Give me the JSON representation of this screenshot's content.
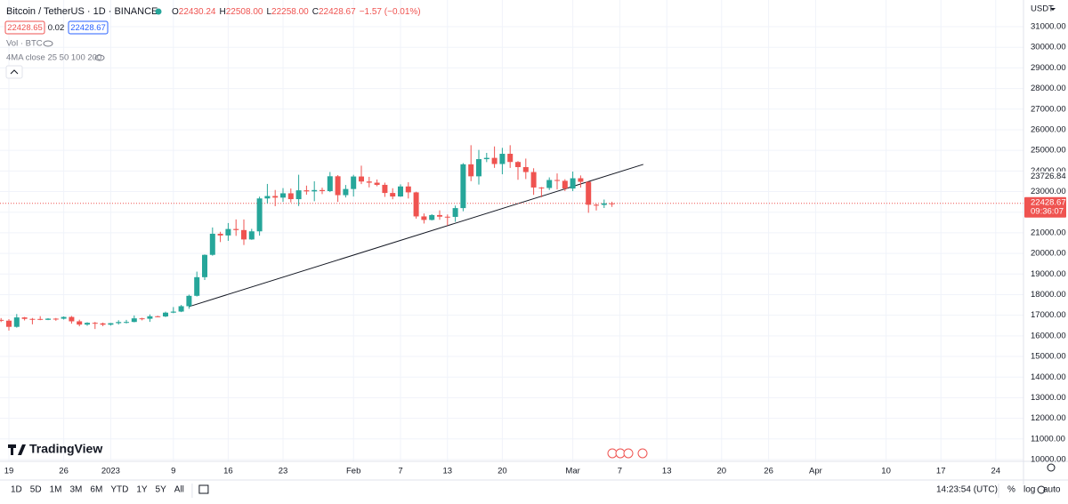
{
  "header": {
    "symbol": "Bitcoin / TetherUS · 1D · BINANCE",
    "ohlc": [
      {
        "label": "O",
        "value": "22430.24"
      },
      {
        "label": "H",
        "value": "22508.00"
      },
      {
        "label": "L",
        "value": "22258.00"
      },
      {
        "label": "C",
        "value": "22428.67"
      }
    ],
    "change": "−1.57 (−0.01%)",
    "bid": "22428.65",
    "spread": "0.02",
    "ask": "22428.67",
    "indicators": [
      "Vol · BTC",
      "4MA close 25 50 100 200"
    ],
    "currency": "USDT"
  },
  "logo": "TradingView",
  "toolbar": {
    "ranges": [
      "1D",
      "5D",
      "1M",
      "3M",
      "6M",
      "YTD",
      "1Y",
      "5Y",
      "All"
    ],
    "clock": "14:23:54 (UTC)",
    "scale_buttons": [
      "%",
      "log",
      "auto"
    ]
  },
  "chart_data": {
    "type": "candlestick",
    "categories": [
      null,
      "19",
      null,
      null,
      null,
      null,
      null,
      null,
      "26",
      null,
      null,
      null,
      null,
      null,
      "2023",
      null,
      null,
      null,
      null,
      null,
      null,
      null,
      "9",
      null,
      null,
      null,
      null,
      null,
      null,
      "16",
      null,
      null,
      null,
      null,
      null,
      null,
      "23",
      null,
      null,
      null,
      null,
      null,
      null,
      null,
      null,
      "Feb",
      null,
      null,
      null,
      null,
      null,
      "7",
      null,
      null,
      null,
      null,
      null,
      "13",
      null,
      null,
      null,
      null,
      null,
      null,
      "20",
      null,
      null,
      null,
      null,
      null,
      null,
      null,
      null,
      "Mar",
      null,
      null,
      null,
      null,
      null,
      "7",
      null,
      null,
      null,
      null,
      null,
      "13",
      null,
      null,
      null,
      null,
      null,
      null,
      "20",
      null,
      null,
      null,
      null,
      null,
      "26",
      null,
      null,
      null,
      null,
      null,
      "Apr",
      null,
      null,
      null,
      null,
      null,
      null,
      null,
      null,
      "10",
      null,
      null,
      null,
      null,
      null,
      null,
      "17",
      null,
      null,
      null,
      null,
      null,
      null,
      "24"
    ],
    "open": [
      16776,
      16738,
      16438,
      16895,
      16824,
      16821,
      16778,
      16836,
      16832,
      16918,
      16706,
      16547,
      16633,
      16607,
      16542,
      16617,
      16672,
      16675,
      16850,
      16831,
      16950,
      16943,
      17127,
      17179,
      17440,
      17943,
      18847,
      19930,
      20952,
      20872,
      21185,
      21133,
      20678,
      21071,
      22667,
      22784,
      22707,
      22917,
      22632,
      23061,
      23009,
      23074,
      23023,
      23743,
      22827,
      23125,
      23732,
      23489,
      23431,
      23327,
      22932,
      22763,
      23249,
      22962,
      21796,
      21625,
      21862,
      21782,
      21773,
      22199,
      24322,
      23740,
      24574,
      24635,
      24338,
      24834,
      24436,
      24188,
      23947,
      23198,
      23175,
      23561,
      23522,
      23147,
      23647,
      23476,
      22362,
      22354,
      22430.24,
      null,
      null,
      null,
      null,
      null,
      null,
      null,
      null,
      null,
      null,
      null,
      null,
      null,
      null,
      null,
      null,
      null,
      null,
      null,
      null,
      null,
      null,
      null,
      null,
      null,
      null,
      null,
      null,
      null,
      null,
      null,
      null,
      null,
      null,
      null,
      null,
      null,
      null,
      null,
      null,
      null,
      null,
      null,
      null,
      null,
      null,
      null,
      null,
      null
    ],
    "high": [
      16863,
      16815,
      17061,
      16917,
      16868,
      16955,
      16864,
      16868,
      16944,
      16964,
      16785,
      16665,
      16677,
      16644,
      16628,
      16760,
      16777,
      16991,
      16879,
      17041,
      16977,
      17176,
      17398,
      17499,
      18000,
      19117,
      19950,
      21258,
      21050,
      21474,
      21650,
      21650,
      21192,
      22755,
      23371,
      23078,
      23166,
      23150,
      23816,
      23290,
      23500,
      23189,
      23950,
      23800,
      23320,
      23812,
      24255,
      23715,
      23587,
      23433,
      23162,
      23350,
      23452,
      22994,
      21938,
      21906,
      22090,
      21890,
      22320,
      24380,
      25250,
      25021,
      24877,
      25190,
      25121,
      25250,
      24476,
      24600,
      24132,
      23219,
      23689,
      23880,
      23600,
      23972,
      23783,
      23479,
      22410,
      22613,
      22508,
      null,
      null,
      null,
      null,
      null,
      null,
      null,
      null,
      null,
      null,
      null,
      null,
      null,
      null,
      null,
      null,
      null,
      null,
      null,
      null,
      null,
      null,
      null,
      null,
      null,
      null,
      null,
      null,
      null,
      null,
      null,
      null,
      null,
      null,
      null,
      null,
      null,
      null,
      null,
      null,
      null,
      null,
      null,
      null,
      null,
      null,
      null,
      null,
      null
    ],
    "low": [
      16672,
      16256,
      16398,
      16749,
      16559,
      16761,
      16764,
      16733,
      16791,
      16592,
      16465,
      16488,
      16333,
      16470,
      16499,
      16548,
      16605,
      16658,
      16753,
      16679,
      16908,
      16911,
      17101,
      17153,
      17315,
      17910,
      18711,
      19888,
      20551,
      20610,
      20852,
      20407,
      20659,
      20861,
      22422,
      22292,
      22500,
      22475,
      22300,
      22850,
      22534,
      22878,
      22975,
      22500,
      22714,
      22760,
      23363,
      23204,
      23258,
      22743,
      22628,
      22745,
      22665,
      21688,
      21451,
      21599,
      21630,
      21351,
      21532,
      22047,
      23505,
      23339,
      24430,
      24150,
      23840,
      24148,
      23574,
      23608,
      22841,
      22722,
      23077,
      23106,
      23027,
      23021,
      23195,
      21971,
      22086,
      22204,
      22258,
      null,
      null,
      null,
      null,
      null,
      null,
      null,
      null,
      null,
      null,
      null,
      null,
      null,
      null,
      null,
      null,
      null,
      null,
      null,
      null,
      null,
      null,
      null,
      null,
      null,
      null,
      null,
      null,
      null,
      null,
      null,
      null,
      null,
      null,
      null,
      null,
      null,
      null,
      null,
      null,
      null,
      null,
      null,
      null,
      null,
      null,
      null,
      null,
      null
    ],
    "close": [
      16738,
      16438,
      16895,
      16824,
      16821,
      16778,
      16836,
      16832,
      16918,
      16706,
      16547,
      16633,
      16607,
      16542,
      16616,
      16672,
      16675,
      16850,
      16831,
      16950,
      16943,
      17127,
      17178,
      17440,
      17943,
      18847,
      19930,
      20954,
      20871,
      21185,
      21133,
      20678,
      21071,
      22667,
      22784,
      22708,
      22917,
      22633,
      23061,
      23009,
      23074,
      23023,
      23743,
      22827,
      23125,
      23732,
      23488,
      23431,
      23326,
      22933,
      22762,
      23249,
      22963,
      21796,
      21625,
      21862,
      21783,
      21773,
      22199,
      24324,
      23741,
      24574,
      24635,
      24338,
      24833,
      24436,
      24188,
      23947,
      23198,
      23175,
      23561,
      23522,
      23147,
      23646,
      23475,
      22362,
      22354,
      22430,
      22428.67,
      null,
      null,
      null,
      null,
      null,
      null,
      null,
      null,
      null,
      null,
      null,
      null,
      null,
      null,
      null,
      null,
      null,
      null,
      null,
      null,
      null,
      null,
      null,
      null,
      null,
      null,
      null,
      null,
      null,
      null,
      null,
      null,
      null,
      null,
      null,
      null,
      null,
      null,
      null,
      null,
      null,
      null,
      null,
      null,
      null,
      null,
      null,
      null,
      null
    ],
    "up_color": "#26a69a",
    "down_color": "#ef5350",
    "ylim": [
      9655,
      32294
    ],
    "yticks": [
      {
        "value": 10000,
        "label": "10000.00"
      },
      {
        "value": 11000,
        "label": "11000.00"
      },
      {
        "value": 12000,
        "label": "12000.00"
      },
      {
        "value": 13000,
        "label": "13000.00"
      },
      {
        "value": 14000,
        "label": "14000.00"
      },
      {
        "value": 15000,
        "label": "15000.00"
      },
      {
        "value": 16000,
        "label": "16000.00"
      },
      {
        "value": 17000,
        "label": "17000.00"
      },
      {
        "value": 18000,
        "label": "18000.00"
      },
      {
        "value": 19000,
        "label": "19000.00"
      },
      {
        "value": 20000,
        "label": "20000.00"
      },
      {
        "value": 21000,
        "label": "21000.00"
      },
      {
        "value": 22000,
        "label": "22000.00"
      },
      {
        "value": 23000,
        "label": "23000.00"
      },
      {
        "value": 24000,
        "label": "24000.00"
      },
      {
        "value": 25000,
        "label": "25000.00"
      },
      {
        "value": 26000,
        "label": "26000.00"
      },
      {
        "value": 27000,
        "label": "27000.00"
      },
      {
        "value": 28000,
        "label": "28000.00"
      },
      {
        "value": 29000,
        "label": "29000.00"
      },
      {
        "value": 30000,
        "label": "30000.00"
      },
      {
        "value": 31000,
        "label": "31000.00"
      }
    ],
    "grid": true,
    "last_price": 22428.67,
    "countdown": "09:36:07",
    "marker_price": 23726.84,
    "trendline": {
      "x": [
        24,
        82
      ],
      "y": [
        17420,
        24320
      ]
    }
  }
}
